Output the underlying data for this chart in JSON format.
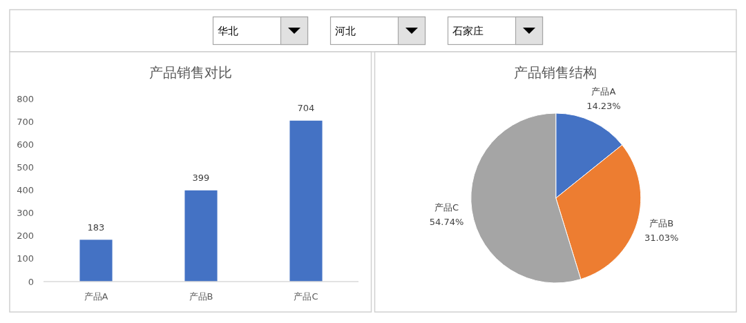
{
  "chart_data": [
    {
      "type": "other",
      "annotations": [
        "华北",
        "河北",
        "石家庄"
      ]
    },
    {
      "type": "bar",
      "title": "产品销售对比",
      "categories": [
        "产品A",
        "产品B",
        "产品C"
      ],
      "values": [
        183,
        399,
        704
      ],
      "color": "#4472c4",
      "ylim": [
        0,
        800
      ],
      "yticks": [
        0,
        100,
        200,
        300,
        400,
        500,
        600,
        700,
        800
      ],
      "data_labels": true
    },
    {
      "type": "pie",
      "title": "产品销售结构",
      "categories": [
        "产品A",
        "产品B",
        "产品C"
      ],
      "values": [
        14.23,
        31.03,
        54.74
      ],
      "colors": [
        "#4472c4",
        "#ed7d31",
        "#a5a5a5"
      ],
      "value_labels": [
        "14.23%",
        "31.03%",
        "54.74%"
      ]
    }
  ]
}
